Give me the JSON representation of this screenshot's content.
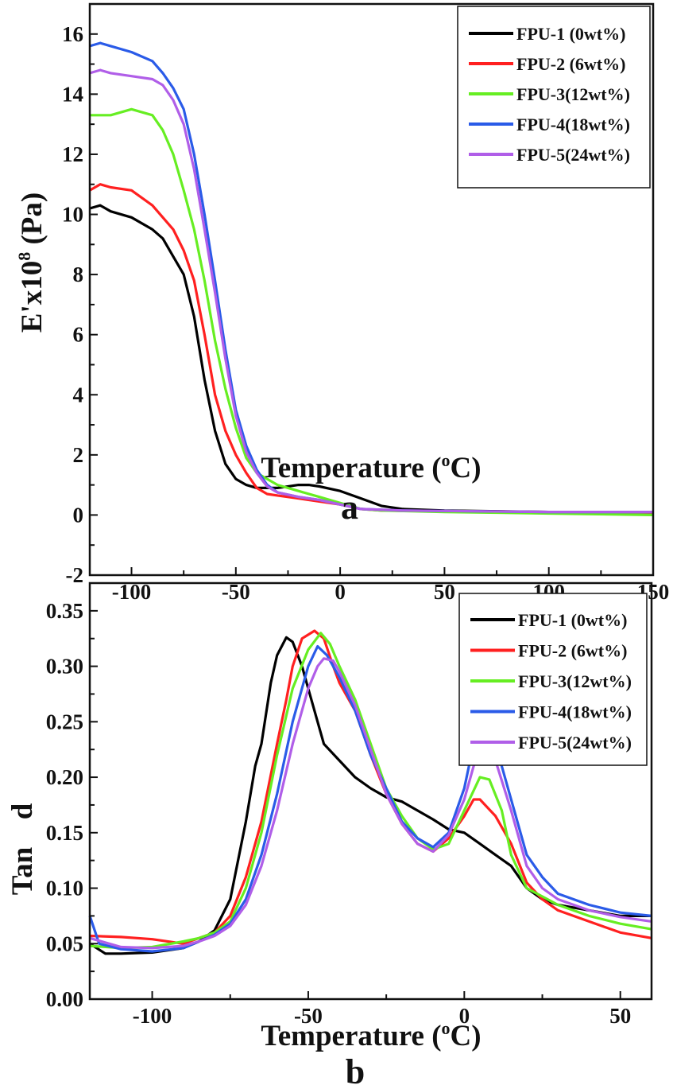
{
  "chart_data": [
    {
      "type": "line",
      "panel_label": "a",
      "xlabel": {
        "pre": "Temperature (",
        "sup": "o",
        "post": "C)"
      },
      "ylabel": {
        "pre": "E'x10",
        "sup": "8",
        "post": " (Pa)"
      },
      "xlim": [
        -120,
        150
      ],
      "ylim": [
        -2,
        17
      ],
      "xticks": [
        -100,
        -50,
        0,
        50,
        100,
        150
      ],
      "yticks": [
        -2,
        0,
        2,
        4,
        6,
        8,
        10,
        12,
        14,
        16
      ],
      "grid": false,
      "legend_position": "top-right",
      "series": [
        {
          "name": "FPU-1 (0wt%)",
          "color": "#000000",
          "x": [
            -120,
            -115,
            -110,
            -100,
            -90,
            -85,
            -80,
            -75,
            -70,
            -65,
            -60,
            -55,
            -50,
            -45,
            -40,
            -30,
            -20,
            -15,
            -10,
            0,
            10,
            20,
            30,
            50,
            100,
            150
          ],
          "y": [
            10.2,
            10.3,
            10.1,
            9.9,
            9.5,
            9.2,
            8.6,
            8.0,
            6.6,
            4.5,
            2.8,
            1.7,
            1.2,
            1.0,
            0.9,
            0.9,
            1.0,
            1.0,
            0.95,
            0.8,
            0.55,
            0.3,
            0.2,
            0.15,
            0.1,
            0.05
          ]
        },
        {
          "name": "FPU-2 (6wt%)",
          "color": "#ff2020",
          "x": [
            -120,
            -115,
            -110,
            -100,
            -90,
            -80,
            -75,
            -70,
            -65,
            -60,
            -55,
            -50,
            -45,
            -40,
            -35,
            -30,
            -20,
            -10,
            0,
            10,
            20,
            50,
            100,
            150
          ],
          "y": [
            10.8,
            11.0,
            10.9,
            10.8,
            10.3,
            9.5,
            8.8,
            7.8,
            6.0,
            4.0,
            2.8,
            2.0,
            1.4,
            0.9,
            0.7,
            0.65,
            0.55,
            0.45,
            0.35,
            0.2,
            0.15,
            0.12,
            0.1,
            0.08
          ]
        },
        {
          "name": "FPU-3(12wt%)",
          "color": "#66ee22",
          "x": [
            -120,
            -115,
            -110,
            -100,
            -90,
            -85,
            -80,
            -75,
            -70,
            -65,
            -60,
            -55,
            -50,
            -45,
            -40,
            -35,
            -30,
            -20,
            -10,
            0,
            10,
            20,
            50,
            100,
            150
          ],
          "y": [
            13.3,
            13.3,
            13.3,
            13.5,
            13.3,
            12.8,
            12.0,
            10.8,
            9.5,
            7.8,
            5.8,
            4.2,
            2.9,
            1.9,
            1.4,
            1.2,
            1.0,
            0.8,
            0.6,
            0.4,
            0.2,
            0.15,
            0.1,
            0.05,
            0.0
          ]
        },
        {
          "name": "FPU-4(18wt%)",
          "color": "#2a5be8",
          "x": [
            -120,
            -115,
            -110,
            -100,
            -90,
            -85,
            -80,
            -75,
            -70,
            -65,
            -60,
            -55,
            -50,
            -45,
            -40,
            -35,
            -30,
            -20,
            -10,
            0,
            10,
            30,
            100,
            150
          ],
          "y": [
            15.6,
            15.7,
            15.6,
            15.4,
            15.1,
            14.7,
            14.2,
            13.5,
            12.0,
            10.0,
            7.8,
            5.5,
            3.5,
            2.3,
            1.5,
            1.0,
            0.75,
            0.6,
            0.5,
            0.35,
            0.2,
            0.15,
            0.1,
            0.1
          ]
        },
        {
          "name": "FPU-5(24wt%)",
          "color": "#b05ee8",
          "x": [
            -120,
            -115,
            -110,
            -100,
            -90,
            -85,
            -80,
            -75,
            -70,
            -65,
            -60,
            -55,
            -50,
            -45,
            -40,
            -35,
            -30,
            -20,
            -10,
            0,
            10,
            30,
            100,
            150
          ],
          "y": [
            14.7,
            14.8,
            14.7,
            14.6,
            14.5,
            14.3,
            13.8,
            13.0,
            11.5,
            9.5,
            7.4,
            5.2,
            3.3,
            2.1,
            1.4,
            0.95,
            0.75,
            0.6,
            0.5,
            0.35,
            0.2,
            0.15,
            0.1,
            0.1
          ]
        }
      ]
    },
    {
      "type": "line",
      "panel_label": "b",
      "xlabel": {
        "pre": "Temperature (",
        "sup": "o",
        "post": "C)"
      },
      "ylabel": {
        "main": "Tan",
        "symbol": "d"
      },
      "xlim": [
        -120,
        60
      ],
      "ylim": [
        0,
        0.375
      ],
      "xticks": [
        -100,
        -50,
        0,
        50
      ],
      "yticks": [
        "0.00",
        "0.05",
        "0.10",
        "0.15",
        "0.20",
        "0.25",
        "0.30",
        "0.35"
      ],
      "grid": false,
      "legend_position": "top-right",
      "series": [
        {
          "name": "FPU-1 (0wt%)",
          "color": "#000000",
          "x": [
            -120,
            -115,
            -110,
            -100,
            -90,
            -85,
            -80,
            -75,
            -70,
            -67,
            -65,
            -62,
            -60,
            -57,
            -55,
            -52,
            -50,
            -47,
            -45,
            -40,
            -35,
            -30,
            -25,
            -20,
            -15,
            -10,
            -5,
            0,
            5,
            10,
            15,
            20,
            25,
            30,
            40,
            50,
            60
          ],
          "y": [
            0.05,
            0.041,
            0.041,
            0.042,
            0.046,
            0.052,
            0.062,
            0.09,
            0.16,
            0.21,
            0.23,
            0.285,
            0.31,
            0.326,
            0.322,
            0.3,
            0.28,
            0.25,
            0.23,
            0.215,
            0.2,
            0.19,
            0.182,
            0.178,
            0.17,
            0.162,
            0.153,
            0.15,
            0.14,
            0.13,
            0.12,
            0.1,
            0.09,
            0.085,
            0.08,
            0.075,
            0.075
          ]
        },
        {
          "name": "FPU-2 (6wt%)",
          "color": "#ff2020",
          "x": [
            -120,
            -110,
            -100,
            -90,
            -85,
            -80,
            -75,
            -70,
            -65,
            -60,
            -57,
            -55,
            -52,
            -48,
            -45,
            -42,
            -40,
            -35,
            -30,
            -25,
            -20,
            -15,
            -10,
            -5,
            0,
            3,
            5,
            10,
            15,
            20,
            25,
            30,
            40,
            50,
            60
          ],
          "y": [
            0.057,
            0.056,
            0.054,
            0.05,
            0.055,
            0.06,
            0.075,
            0.11,
            0.16,
            0.23,
            0.27,
            0.3,
            0.325,
            0.332,
            0.325,
            0.3,
            0.285,
            0.26,
            0.22,
            0.185,
            0.158,
            0.14,
            0.133,
            0.145,
            0.165,
            0.18,
            0.18,
            0.165,
            0.14,
            0.105,
            0.09,
            0.08,
            0.07,
            0.06,
            0.055
          ]
        },
        {
          "name": "FPU-3(12wt%)",
          "color": "#66ee22",
          "x": [
            -120,
            -110,
            -100,
            -90,
            -85,
            -80,
            -75,
            -70,
            -65,
            -60,
            -55,
            -50,
            -46,
            -43,
            -40,
            -35,
            -30,
            -25,
            -20,
            -15,
            -10,
            -5,
            0,
            5,
            8,
            12,
            15,
            20,
            30,
            40,
            50,
            60
          ],
          "y": [
            0.048,
            0.046,
            0.047,
            0.052,
            0.055,
            0.06,
            0.07,
            0.1,
            0.15,
            0.22,
            0.28,
            0.315,
            0.33,
            0.32,
            0.3,
            0.27,
            0.23,
            0.19,
            0.165,
            0.145,
            0.135,
            0.14,
            0.17,
            0.2,
            0.198,
            0.17,
            0.13,
            0.1,
            0.085,
            0.075,
            0.068,
            0.063
          ]
        },
        {
          "name": "FPU-4(18wt%)",
          "color": "#2a5be8",
          "x": [
            -120,
            -117,
            -110,
            -100,
            -90,
            -85,
            -80,
            -75,
            -70,
            -65,
            -60,
            -55,
            -50,
            -47,
            -44,
            -40,
            -35,
            -30,
            -25,
            -20,
            -15,
            -10,
            -5,
            0,
            3,
            6,
            10,
            15,
            20,
            25,
            30,
            40,
            50,
            60
          ],
          "y": [
            0.075,
            0.05,
            0.045,
            0.043,
            0.046,
            0.052,
            0.058,
            0.068,
            0.09,
            0.13,
            0.185,
            0.25,
            0.3,
            0.318,
            0.31,
            0.29,
            0.26,
            0.22,
            0.19,
            0.16,
            0.145,
            0.137,
            0.15,
            0.19,
            0.23,
            0.25,
            0.23,
            0.18,
            0.13,
            0.11,
            0.095,
            0.085,
            0.078,
            0.075
          ]
        },
        {
          "name": "FPU-5(24wt%)",
          "color": "#b05ee8",
          "x": [
            -120,
            -110,
            -100,
            -90,
            -85,
            -80,
            -75,
            -70,
            -65,
            -60,
            -55,
            -50,
            -47,
            -45,
            -42,
            -40,
            -35,
            -30,
            -25,
            -20,
            -15,
            -10,
            -5,
            0,
            3,
            6,
            10,
            15,
            20,
            25,
            30,
            40,
            50,
            60
          ],
          "y": [
            0.055,
            0.047,
            0.046,
            0.048,
            0.052,
            0.057,
            0.066,
            0.085,
            0.12,
            0.17,
            0.23,
            0.28,
            0.3,
            0.307,
            0.305,
            0.295,
            0.265,
            0.225,
            0.185,
            0.158,
            0.14,
            0.133,
            0.148,
            0.18,
            0.21,
            0.23,
            0.215,
            0.17,
            0.12,
            0.1,
            0.09,
            0.08,
            0.074,
            0.07
          ]
        }
      ]
    }
  ]
}
